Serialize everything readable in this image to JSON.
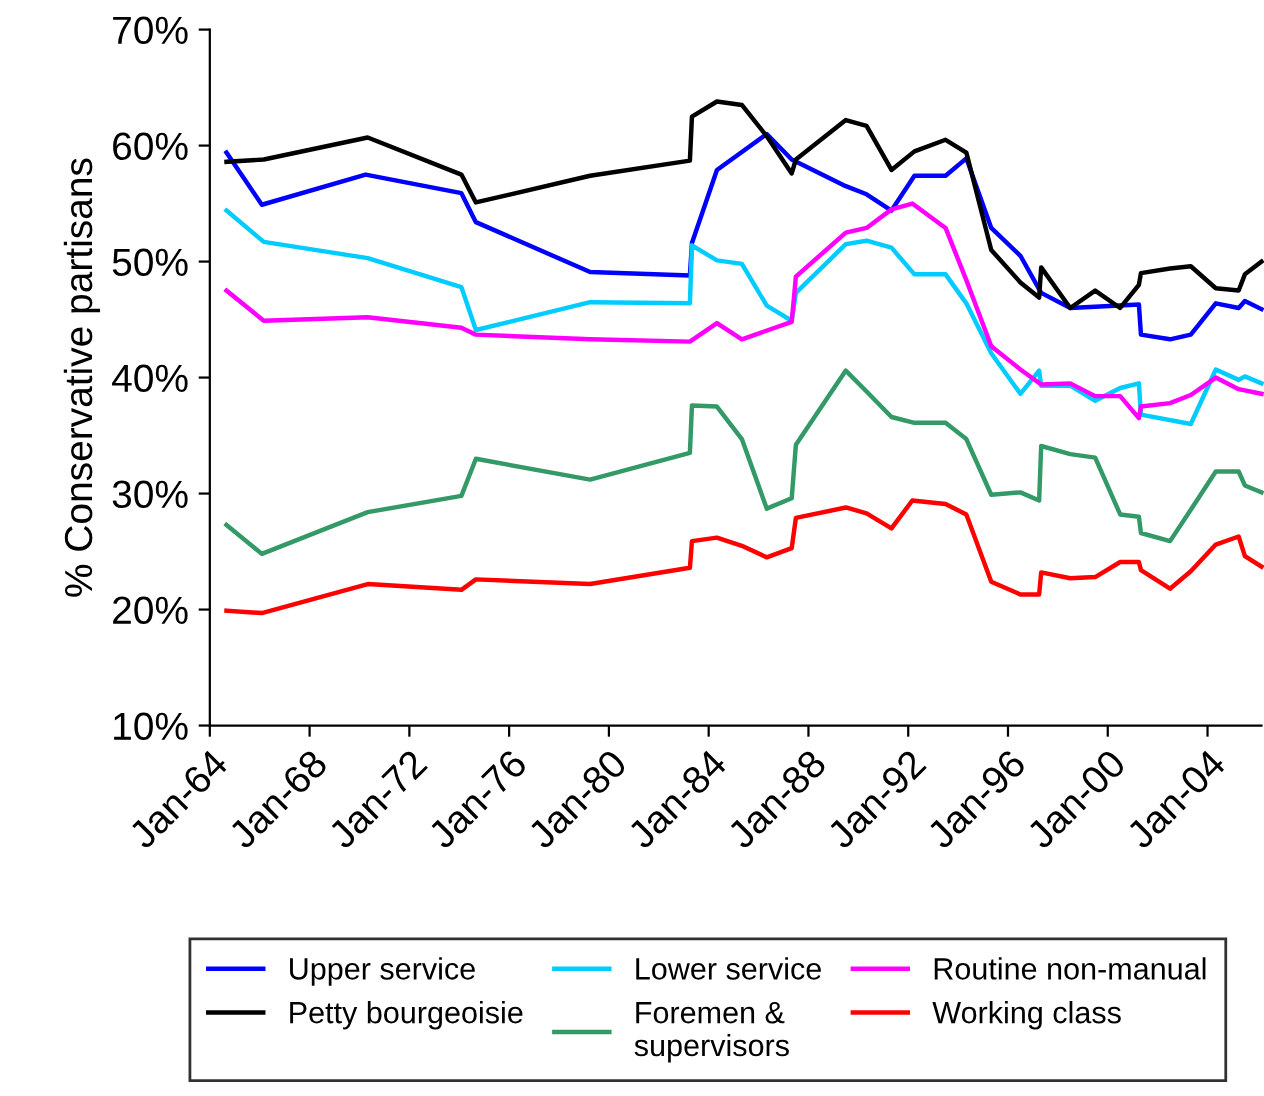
{
  "chart_data": {
    "type": "line",
    "ylabel": "% Conservative partisans",
    "xlim": [
      "1964-01",
      "2006-03"
    ],
    "ylim": [
      10,
      70
    ],
    "xticks": [
      {
        "value": "1964-01",
        "label": "Jan-64"
      },
      {
        "value": "1968-01",
        "label": "Jan-68"
      },
      {
        "value": "1972-01",
        "label": "Jan-72"
      },
      {
        "value": "1976-01",
        "label": "Jan-76"
      },
      {
        "value": "1980-01",
        "label": "Jan-80"
      },
      {
        "value": "1984-01",
        "label": "Jan-84"
      },
      {
        "value": "1988-01",
        "label": "Jan-88"
      },
      {
        "value": "1992-01",
        "label": "Jan-92"
      },
      {
        "value": "1996-01",
        "label": "Jan-96"
      },
      {
        "value": "2000-01",
        "label": "Jan-00"
      },
      {
        "value": "2004-01",
        "label": "Jan-04"
      }
    ],
    "yticks": [
      {
        "value": 10,
        "label": "10%"
      },
      {
        "value": 20,
        "label": "20%"
      },
      {
        "value": 30,
        "label": "30%"
      },
      {
        "value": 40,
        "label": "40%"
      },
      {
        "value": 50,
        "label": "50%"
      },
      {
        "value": 60,
        "label": "60%"
      },
      {
        "value": 70,
        "label": "70%"
      }
    ],
    "grid": false,
    "legend": "bottom",
    "marker": "none",
    "line_style": "solid",
    "series": [
      {
        "name": "Upper service",
        "color": "#0000ff",
        "x": [
          "1964-09",
          "1966-02",
          "1970-04",
          "1974-02",
          "1974-09",
          "1979-04",
          "1983-04",
          "1983-05",
          "1984-05",
          "1986-05",
          "1987-05",
          "1989-07",
          "1990-05",
          "1991-05",
          "1992-04",
          "1993-07",
          "1994-05",
          "1995-05",
          "1996-07",
          "1997-05",
          "1998-07",
          "2001-04",
          "2001-05",
          "2002-07",
          "2003-05",
          "2004-05",
          "2005-04",
          "2005-07",
          "2006-03"
        ],
        "values": [
          59.4,
          54.9,
          57.5,
          55.9,
          53.4,
          49.1,
          48.8,
          51.6,
          57.9,
          61.0,
          58.8,
          56.5,
          55.8,
          54.4,
          57.4,
          57.4,
          58.9,
          52.9,
          50.5,
          47.3,
          46.0,
          46.3,
          43.7,
          43.3,
          43.7,
          46.4,
          46.0,
          46.6,
          45.9
        ]
      },
      {
        "name": "Lower service",
        "color": "#00ccff",
        "x": [
          "1964-09",
          "1966-03",
          "1970-05",
          "1974-02",
          "1974-09",
          "1979-04",
          "1983-04",
          "1983-05",
          "1984-05",
          "1985-05",
          "1986-05",
          "1987-05",
          "1987-07",
          "1989-07",
          "1990-05",
          "1991-05",
          "1992-04",
          "1993-07",
          "1994-05",
          "1995-05",
          "1996-07",
          "1997-04",
          "1997-05",
          "1998-07",
          "1999-07",
          "2000-07",
          "2001-04",
          "2001-05",
          "2003-05",
          "2004-05",
          "2005-04",
          "2005-07",
          "2006-03"
        ],
        "values": [
          54.4,
          51.7,
          50.3,
          47.8,
          44.1,
          46.5,
          46.4,
          51.4,
          50.1,
          49.8,
          46.2,
          44.9,
          47.3,
          51.5,
          51.8,
          51.2,
          48.9,
          48.9,
          46.4,
          42.1,
          38.6,
          40.6,
          39.3,
          39.3,
          38.0,
          39.1,
          39.5,
          36.8,
          36.0,
          40.7,
          39.8,
          40.1,
          39.5
        ]
      },
      {
        "name": "Routine non-manual",
        "color": "#ff00ff",
        "x": [
          "1964-09",
          "1966-03",
          "1970-05",
          "1974-02",
          "1974-09",
          "1979-04",
          "1983-04",
          "1984-05",
          "1985-05",
          "1987-05",
          "1987-07",
          "1989-07",
          "1990-05",
          "1991-05",
          "1992-03",
          "1993-07",
          "1994-05",
          "1995-05",
          "1996-07",
          "1997-05",
          "1998-07",
          "1999-07",
          "2000-07",
          "2001-04",
          "2001-05",
          "2002-07",
          "2003-05",
          "2004-05",
          "2005-04",
          "2006-03"
        ],
        "values": [
          47.5,
          44.9,
          45.2,
          44.3,
          43.7,
          43.3,
          43.1,
          44.7,
          43.3,
          44.8,
          48.7,
          52.5,
          52.9,
          54.5,
          55.0,
          52.9,
          48.4,
          42.7,
          40.7,
          39.4,
          39.5,
          38.4,
          38.4,
          36.5,
          37.5,
          37.8,
          38.5,
          40.0,
          39.0,
          38.6
        ]
      },
      {
        "name": "Petty bourgeoisie",
        "color": "#000000",
        "x": [
          "1964-09",
          "1966-03",
          "1970-05",
          "1974-02",
          "1974-09",
          "1979-04",
          "1983-04",
          "1983-05",
          "1984-05",
          "1985-05",
          "1986-05",
          "1987-05",
          "1987-07",
          "1989-07",
          "1990-05",
          "1991-05",
          "1992-04",
          "1993-07",
          "1994-05",
          "1995-05",
          "1996-07",
          "1997-04",
          "1997-05",
          "1998-07",
          "1999-07",
          "2000-07",
          "2001-04",
          "2001-05",
          "2002-07",
          "2003-05",
          "2004-05",
          "2005-04",
          "2005-07",
          "2006-03"
        ],
        "values": [
          58.6,
          58.8,
          60.7,
          57.5,
          55.1,
          57.4,
          58.7,
          62.5,
          63.8,
          63.5,
          60.8,
          57.6,
          58.8,
          62.2,
          61.7,
          57.9,
          59.5,
          60.5,
          59.4,
          51.0,
          48.2,
          46.9,
          49.5,
          46.0,
          47.5,
          46.0,
          48.0,
          49.0,
          49.4,
          49.6,
          47.7,
          47.5,
          48.9,
          50.0
        ]
      },
      {
        "name": "Foremen &\nsupervisors",
        "color": "#339966",
        "x": [
          "1964-09",
          "1966-02",
          "1970-05",
          "1974-02",
          "1974-09",
          "1979-04",
          "1983-04",
          "1983-05",
          "1984-05",
          "1985-05",
          "1986-05",
          "1987-05",
          "1987-07",
          "1989-07",
          "1990-05",
          "1991-05",
          "1992-04",
          "1993-07",
          "1994-05",
          "1995-05",
          "1996-07",
          "1997-04",
          "1997-05",
          "1998-07",
          "1999-07",
          "2000-07",
          "2001-04",
          "2001-05",
          "2002-07",
          "2003-05",
          "2004-05",
          "2005-04",
          "2005-07",
          "2006-03"
        ],
        "values": [
          27.3,
          24.8,
          28.4,
          29.8,
          33.0,
          31.2,
          33.5,
          37.6,
          37.5,
          34.7,
          28.7,
          29.6,
          34.2,
          40.6,
          38.8,
          36.6,
          36.1,
          36.1,
          34.7,
          29.9,
          30.1,
          29.4,
          34.1,
          33.4,
          33.1,
          28.2,
          28.0,
          26.6,
          25.9,
          28.6,
          31.9,
          31.9,
          30.7,
          30.1
        ]
      },
      {
        "name": "Working class",
        "color": "#ff0000",
        "x": [
          "1964-09",
          "1966-02",
          "1970-05",
          "1974-02",
          "1974-09",
          "1979-04",
          "1983-04",
          "1983-05",
          "1984-05",
          "1985-05",
          "1986-05",
          "1987-05",
          "1987-07",
          "1989-07",
          "1990-05",
          "1991-05",
          "1992-03",
          "1993-07",
          "1994-05",
          "1995-05",
          "1996-07",
          "1997-04",
          "1997-05",
          "1998-07",
          "1999-07",
          "2000-07",
          "2001-04",
          "2001-05",
          "2002-07",
          "2003-05",
          "2004-05",
          "2005-04",
          "2005-07",
          "2006-03"
        ],
        "values": [
          19.9,
          19.7,
          22.2,
          21.7,
          22.6,
          22.2,
          23.6,
          25.9,
          26.2,
          25.5,
          24.5,
          25.3,
          27.9,
          28.8,
          28.3,
          27.0,
          29.4,
          29.1,
          28.2,
          22.4,
          21.3,
          21.3,
          23.2,
          22.7,
          22.8,
          24.1,
          24.1,
          23.4,
          21.8,
          23.3,
          25.6,
          26.3,
          24.6,
          23.7
        ]
      }
    ]
  }
}
